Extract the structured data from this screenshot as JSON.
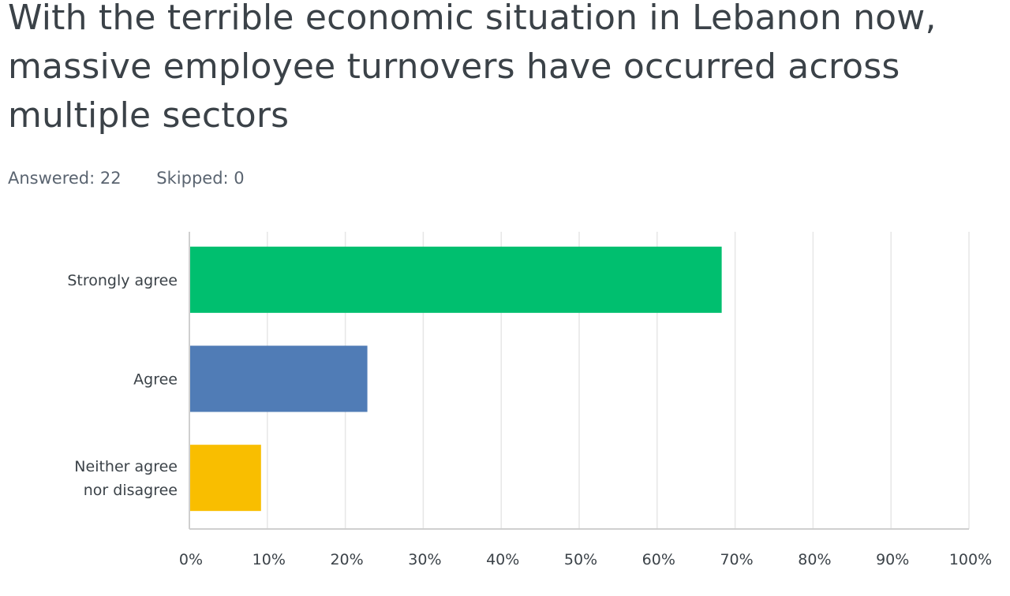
{
  "question": {
    "title": "With the terrible economic situation in Lebanon now, massive employee turnovers have occurred across multiple sectors"
  },
  "stats": {
    "answered": "Answered: 22",
    "skipped": "Skipped: 0"
  },
  "chart_data": {
    "type": "bar",
    "orientation": "horizontal",
    "categories": [
      "Strongly agree",
      "Agree",
      "Neither agree nor disagree"
    ],
    "category_lines": [
      [
        "Strongly agree"
      ],
      [
        "Agree"
      ],
      [
        "Neither agree",
        "nor disagree"
      ]
    ],
    "values": [
      68.18,
      22.73,
      9.09
    ],
    "colors": [
      "#00bf6f",
      "#507cb6",
      "#f9be00"
    ],
    "xlim": [
      0,
      100
    ],
    "x_ticks": [
      0,
      10,
      20,
      30,
      40,
      50,
      60,
      70,
      80,
      90,
      100
    ],
    "x_tick_labels": [
      "0%",
      "10%",
      "20%",
      "30%",
      "40%",
      "50%",
      "60%",
      "70%",
      "80%",
      "90%",
      "100%"
    ],
    "grid": true,
    "grid_color": "#e6e6e6",
    "axis_color": "#cfcfcf"
  }
}
